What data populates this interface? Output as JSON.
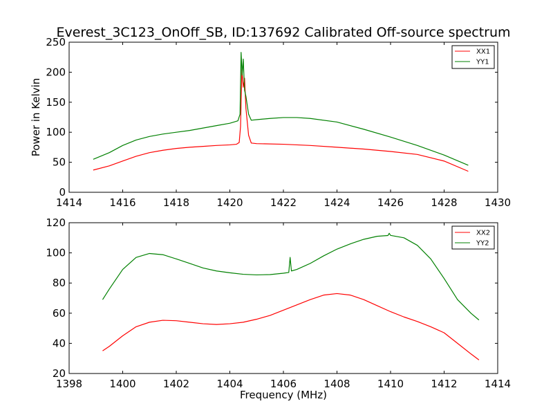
{
  "figure": {
    "title": "Everest_3C123_OnOff_SB, ID:137692 Calibrated Off-source spectrum"
  },
  "chart_data": [
    {
      "type": "line",
      "title": "Everest_3C123_OnOff_SB, ID:137692 Calibrated Off-source spectrum",
      "xlabel": "",
      "ylabel": "Power in Kelvin",
      "xlim": [
        1414,
        1430
      ],
      "ylim": [
        0,
        250
      ],
      "xticks": [
        1414,
        1416,
        1418,
        1420,
        1422,
        1424,
        1426,
        1428,
        1430
      ],
      "yticks": [
        0,
        50,
        100,
        150,
        200,
        250
      ],
      "legend_position": "top-right",
      "grid": false,
      "series": [
        {
          "name": "XX1",
          "color": "#ff0000",
          "points": [
            [
              1414.9,
              37
            ],
            [
              1415.5,
              44
            ],
            [
              1416.0,
              52
            ],
            [
              1416.5,
              60
            ],
            [
              1417.0,
              66
            ],
            [
              1417.5,
              70
            ],
            [
              1418.0,
              73
            ],
            [
              1418.5,
              75
            ],
            [
              1419.0,
              76.5
            ],
            [
              1419.5,
              78
            ],
            [
              1420.0,
              79
            ],
            [
              1420.25,
              80
            ],
            [
              1420.35,
              83
            ],
            [
              1420.4,
              110
            ],
            [
              1420.45,
              205
            ],
            [
              1420.5,
              175
            ],
            [
              1420.55,
              190
            ],
            [
              1420.6,
              140
            ],
            [
              1420.7,
              95
            ],
            [
              1420.8,
              82
            ],
            [
              1421.0,
              81
            ],
            [
              1422.0,
              80
            ],
            [
              1423.0,
              78
            ],
            [
              1424.0,
              75
            ],
            [
              1425.0,
              72
            ],
            [
              1426.0,
              68
            ],
            [
              1427.0,
              63
            ],
            [
              1428.0,
              52
            ],
            [
              1428.9,
              35
            ]
          ]
        },
        {
          "name": "YY1",
          "color": "#008000",
          "points": [
            [
              1414.9,
              55
            ],
            [
              1415.5,
              66
            ],
            [
              1416.0,
              78
            ],
            [
              1416.5,
              87
            ],
            [
              1417.0,
              93
            ],
            [
              1417.5,
              97
            ],
            [
              1418.0,
              100
            ],
            [
              1418.5,
              103
            ],
            [
              1419.0,
              107
            ],
            [
              1419.5,
              111
            ],
            [
              1420.0,
              115
            ],
            [
              1420.3,
              119
            ],
            [
              1420.38,
              130
            ],
            [
              1420.42,
              233
            ],
            [
              1420.46,
              195
            ],
            [
              1420.5,
              222
            ],
            [
              1420.55,
              170
            ],
            [
              1420.6,
              160
            ],
            [
              1420.7,
              130
            ],
            [
              1420.8,
              120
            ],
            [
              1421.0,
              121
            ],
            [
              1421.5,
              123
            ],
            [
              1422.0,
              124.5
            ],
            [
              1422.5,
              124.5
            ],
            [
              1423.0,
              123
            ],
            [
              1424.0,
              117
            ],
            [
              1425.0,
              105
            ],
            [
              1426.0,
              92
            ],
            [
              1427.0,
              78
            ],
            [
              1428.0,
              62
            ],
            [
              1428.9,
              45
            ]
          ]
        }
      ]
    },
    {
      "type": "line",
      "title": "",
      "xlabel": "Frequency (MHz)",
      "ylabel": "",
      "xlim": [
        1398,
        1414
      ],
      "ylim": [
        20,
        120
      ],
      "xticks": [
        1398,
        1400,
        1402,
        1404,
        1406,
        1408,
        1410,
        1412,
        1414
      ],
      "yticks": [
        20,
        40,
        60,
        80,
        100,
        120
      ],
      "legend_position": "top-right",
      "grid": false,
      "series": [
        {
          "name": "XX2",
          "color": "#ff0000",
          "points": [
            [
              1399.25,
              35
            ],
            [
              1399.5,
              38
            ],
            [
              1400.0,
              45
            ],
            [
              1400.5,
              51
            ],
            [
              1401.0,
              54
            ],
            [
              1401.5,
              55.3
            ],
            [
              1402.0,
              55
            ],
            [
              1402.5,
              54
            ],
            [
              1403.0,
              53
            ],
            [
              1403.5,
              52.5
            ],
            [
              1404.0,
              53
            ],
            [
              1404.5,
              54
            ],
            [
              1405.0,
              56
            ],
            [
              1405.5,
              58.5
            ],
            [
              1406.0,
              62
            ],
            [
              1406.5,
              65.5
            ],
            [
              1407.0,
              69
            ],
            [
              1407.5,
              72
            ],
            [
              1408.0,
              73
            ],
            [
              1408.5,
              72
            ],
            [
              1409.0,
              69
            ],
            [
              1409.5,
              65
            ],
            [
              1410.0,
              61
            ],
            [
              1410.5,
              57.5
            ],
            [
              1411.0,
              54.5
            ],
            [
              1411.5,
              51
            ],
            [
              1412.0,
              47
            ],
            [
              1412.5,
              40
            ],
            [
              1413.0,
              33
            ],
            [
              1413.3,
              29
            ]
          ]
        },
        {
          "name": "YY2",
          "color": "#008000",
          "points": [
            [
              1399.25,
              69
            ],
            [
              1399.5,
              76
            ],
            [
              1400.0,
              89
            ],
            [
              1400.5,
              97
            ],
            [
              1401.0,
              99.6
            ],
            [
              1401.5,
              98.8
            ],
            [
              1402.0,
              96
            ],
            [
              1402.5,
              93
            ],
            [
              1403.0,
              90
            ],
            [
              1403.5,
              88
            ],
            [
              1404.0,
              86.8
            ],
            [
              1404.5,
              85.8
            ],
            [
              1405.0,
              85.4
            ],
            [
              1405.5,
              85.6
            ],
            [
              1406.0,
              86.5
            ],
            [
              1406.2,
              87
            ],
            [
              1406.25,
              97
            ],
            [
              1406.3,
              88
            ],
            [
              1406.5,
              89
            ],
            [
              1407.0,
              93
            ],
            [
              1407.5,
              98
            ],
            [
              1408.0,
              102.5
            ],
            [
              1408.5,
              106
            ],
            [
              1409.0,
              109
            ],
            [
              1409.5,
              111
            ],
            [
              1409.9,
              111.5
            ],
            [
              1409.95,
              113
            ],
            [
              1410.0,
              111.6
            ],
            [
              1410.5,
              110
            ],
            [
              1411.0,
              105
            ],
            [
              1411.5,
              96
            ],
            [
              1412.0,
              83
            ],
            [
              1412.5,
              69
            ],
            [
              1413.0,
              60
            ],
            [
              1413.3,
              55.5
            ]
          ]
        }
      ]
    }
  ]
}
